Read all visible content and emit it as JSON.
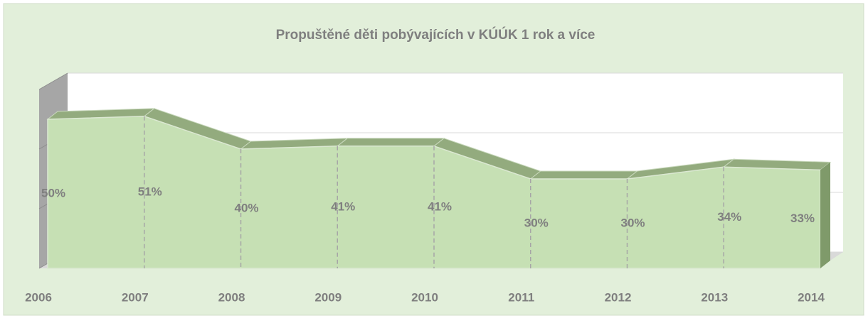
{
  "chart_data": {
    "type": "area3d",
    "title": "Propuštěné děti pobývajících v KÚÚK 1 rok a více",
    "categories": [
      "2006",
      "2007",
      "2008",
      "2009",
      "2010",
      "2011",
      "2012",
      "2013",
      "2014"
    ],
    "values": [
      50,
      51,
      40,
      41,
      41,
      30,
      30,
      34,
      33
    ],
    "value_labels": [
      "50%",
      "51%",
      "40%",
      "41%",
      "41%",
      "30%",
      "30%",
      "34%",
      "33%"
    ],
    "color": "#c6e0b4",
    "ylim": [
      0,
      60
    ],
    "yticks": [
      0,
      20,
      40,
      60
    ],
    "grid": true
  }
}
